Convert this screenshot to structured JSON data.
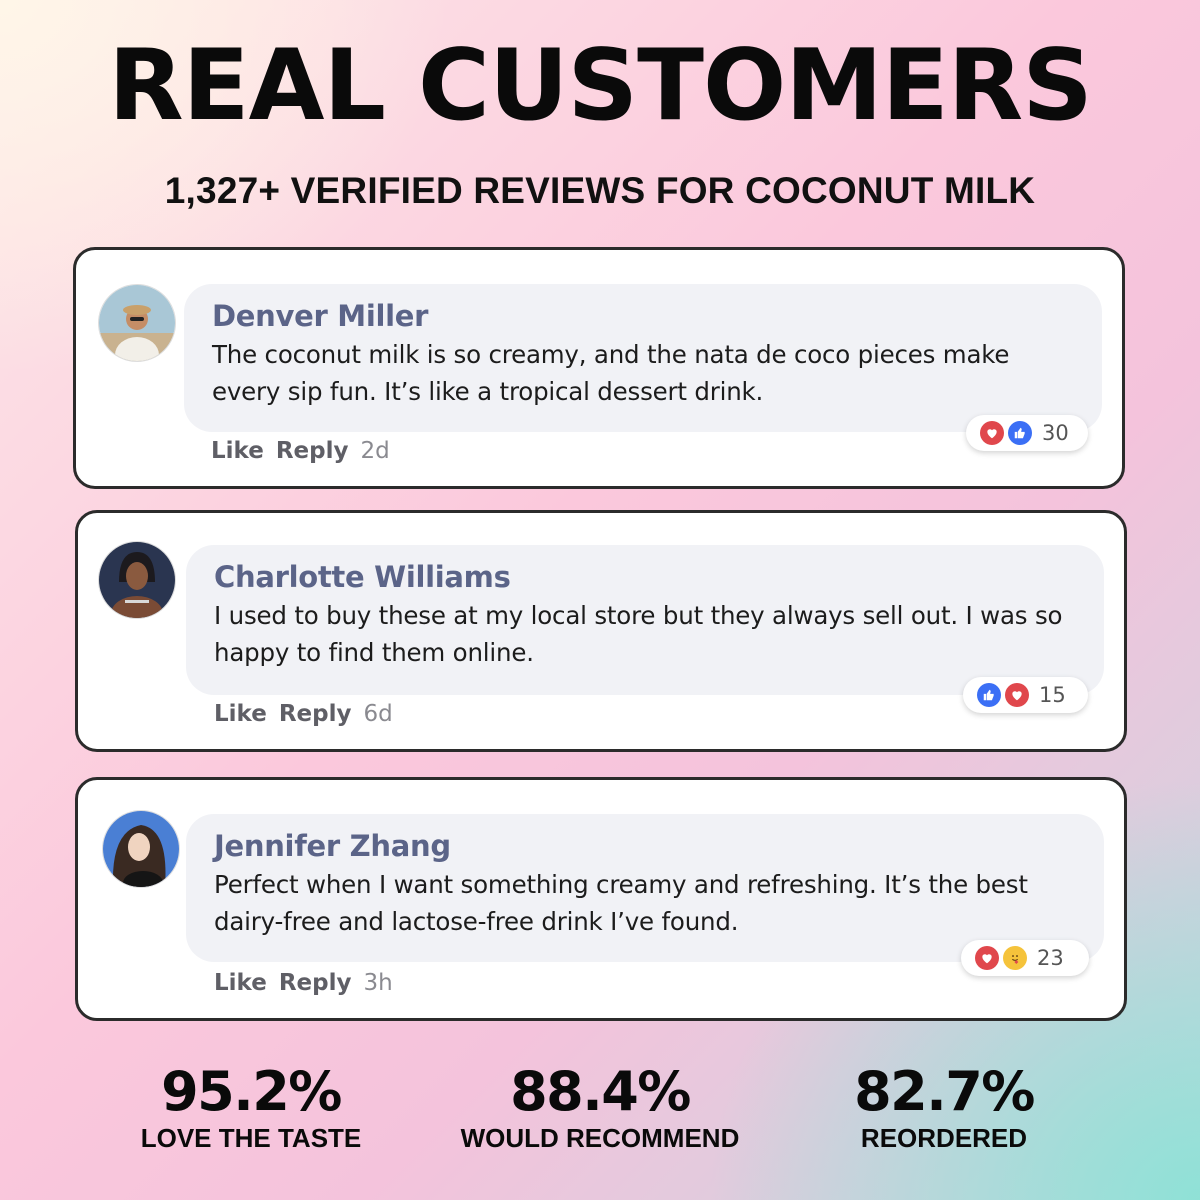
{
  "header": {
    "title": "REAL CUSTOMERS",
    "subtitle": "1,327+ VERIFIED REVIEWS FOR COCONUT MILK"
  },
  "reviews": [
    {
      "name": "Denver Miller",
      "text": "The coconut milk is so creamy, and the nata de coco pieces make every sip fun. It’s like a tropical dessert drink.",
      "actions": {
        "like": "Like",
        "reply": "Reply",
        "time": "2d"
      },
      "reactions": {
        "icons": [
          "heart-icon",
          "thumbs-up-icon"
        ],
        "count": "30"
      }
    },
    {
      "name": "Charlotte Williams",
      "text": "I used to buy these at my local store but they always sell out. I was so happy to find them online.",
      "actions": {
        "like": "Like",
        "reply": "Reply",
        "time": "6d"
      },
      "reactions": {
        "icons": [
          "thumbs-up-icon",
          "heart-icon"
        ],
        "count": "15"
      }
    },
    {
      "name": "Jennifer Zhang",
      "text": "Perfect when I want something creamy and refreshing. It’s the best dairy-free and lactose-free drink I’ve found.",
      "actions": {
        "like": "Like",
        "reply": "Reply",
        "time": "3h"
      },
      "reactions": {
        "icons": [
          "heart-icon",
          "care-hug-icon"
        ],
        "count": "23"
      }
    }
  ],
  "stats": [
    {
      "value": "95.2%",
      "label": "LOVE THE TASTE"
    },
    {
      "value": "88.4%",
      "label": "WOULD RECOMMEND"
    },
    {
      "value": "82.7%",
      "label": "REORDERED"
    }
  ],
  "colors": {
    "name": "#5b6488",
    "bubble": "#f1f2f6",
    "heart": "#e0474c",
    "like": "#3b6ff5",
    "care": "#f5c33b"
  }
}
